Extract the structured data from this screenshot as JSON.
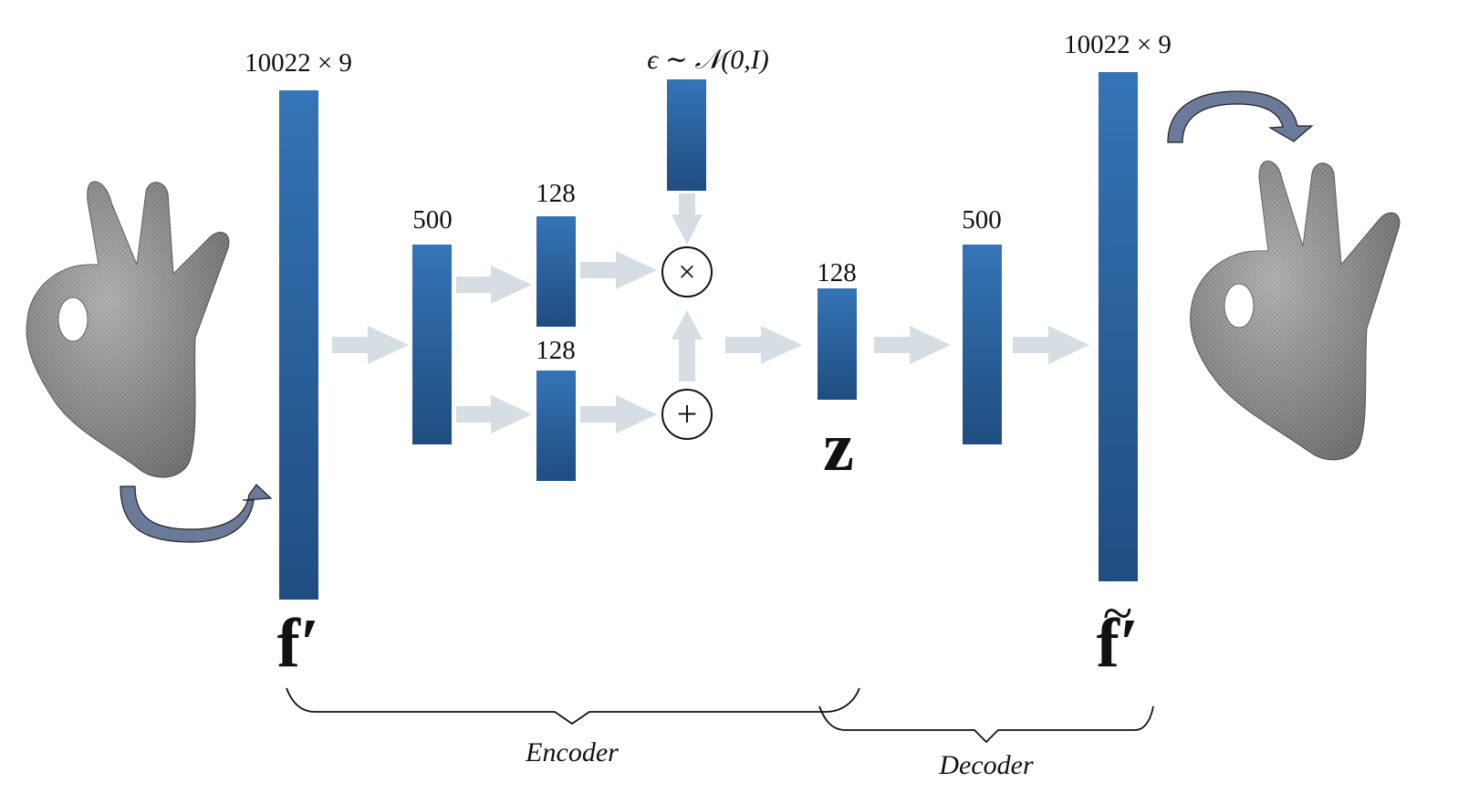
{
  "input": {
    "dims": "10022 × 9",
    "symbol": "f′"
  },
  "encoder": {
    "hidden_units": "500",
    "mu_units": "128",
    "sigma_units": "128",
    "multiply_symbol": "×",
    "add_symbol": "+",
    "noise_label": "ϵ ∼ 𝒩(0,I)"
  },
  "latent": {
    "units": "128",
    "symbol": "z"
  },
  "decoder": {
    "hidden_units": "500"
  },
  "output": {
    "dims": "10022 × 9",
    "symbol": "f′",
    "accent": "~"
  },
  "brackets": {
    "encoder_label": "Encoder",
    "decoder_label": "Decoder"
  },
  "colors": {
    "layer_top": "#3574b6",
    "layer_bottom": "#1f4d80",
    "arrow": "#d6dde3",
    "curved_arrow": "#6b7a99"
  }
}
